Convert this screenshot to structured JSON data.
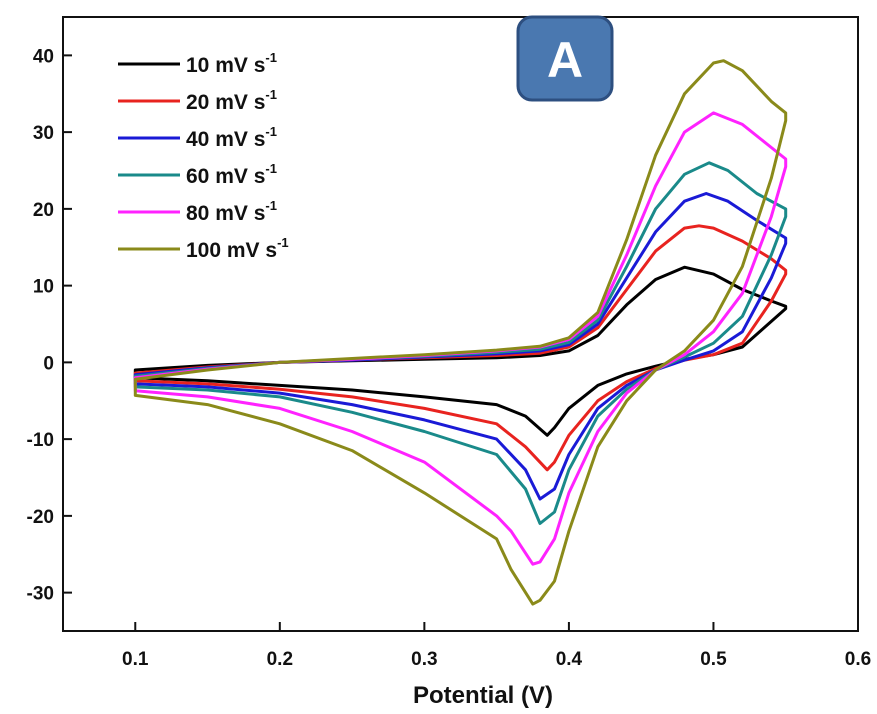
{
  "panel_label": "A",
  "colors": {
    "10": "#000000",
    "20": "#e8231f",
    "40": "#1a1ad6",
    "60": "#1a8a8a",
    "80": "#ff22ff",
    "100": "#8a8a1a",
    "badge_fill": "#4a78b0",
    "badge_stroke": "#2d4f80"
  },
  "chart_data": {
    "type": "line",
    "title": "",
    "xlabel": "Potential (V)",
    "ylabel": "",
    "xlim": [
      0.05,
      0.6
    ],
    "ylim": [
      -35,
      45
    ],
    "xticks": [
      "0.1",
      "0.2",
      "0.3",
      "0.4",
      "0.5",
      "0.6"
    ],
    "yticks": [
      "40",
      "30",
      "20",
      "10",
      "0",
      "-10",
      "-20",
      "-30"
    ],
    "xtick_values": [
      0.1,
      0.2,
      0.3,
      0.4,
      0.5,
      0.6
    ],
    "ytick_values": [
      40,
      30,
      20,
      10,
      0,
      -10,
      -20,
      -30
    ],
    "grid": false,
    "legend_position": "top-left",
    "series": [
      {
        "name": "10 mV s-1",
        "legend_main": "10 mV s",
        "legend_sup": "-1",
        "color_key": "10",
        "x": [
          0.1,
          0.15,
          0.2,
          0.25,
          0.3,
          0.35,
          0.38,
          0.4,
          0.42,
          0.44,
          0.46,
          0.48,
          0.5,
          0.52,
          0.54,
          0.55,
          0.55,
          0.52,
          0.5,
          0.48,
          0.46,
          0.44,
          0.42,
          0.4,
          0.39,
          0.385,
          0.37,
          0.35,
          0.3,
          0.25,
          0.2,
          0.15,
          0.1
        ],
        "y": [
          -1.0,
          -0.4,
          0.0,
          0.2,
          0.4,
          0.6,
          0.9,
          1.5,
          3.5,
          7.5,
          10.8,
          12.4,
          11.5,
          9.5,
          8.0,
          7.3,
          7.0,
          2.0,
          1.0,
          0.4,
          -0.5,
          -1.5,
          -3.0,
          -6.0,
          -8.5,
          -9.5,
          -7.0,
          -5.5,
          -4.5,
          -3.6,
          -3.0,
          -2.4,
          -2.0
        ]
      },
      {
        "name": "20 mV s-1",
        "legend_main": "20 mV s",
        "legend_sup": "-1",
        "color_key": "20",
        "x": [
          0.1,
          0.15,
          0.2,
          0.25,
          0.3,
          0.35,
          0.38,
          0.4,
          0.42,
          0.44,
          0.46,
          0.48,
          0.49,
          0.5,
          0.52,
          0.54,
          0.55,
          0.55,
          0.54,
          0.52,
          0.5,
          0.48,
          0.46,
          0.44,
          0.42,
          0.4,
          0.39,
          0.385,
          0.37,
          0.35,
          0.3,
          0.25,
          0.2,
          0.15,
          0.1
        ],
        "y": [
          -1.4,
          -0.6,
          0.0,
          0.3,
          0.6,
          0.9,
          1.2,
          2.0,
          4.5,
          9.5,
          14.5,
          17.5,
          17.8,
          17.5,
          15.8,
          13.5,
          12.0,
          11.5,
          8.0,
          2.5,
          1.0,
          0.3,
          -0.8,
          -2.5,
          -5.0,
          -9.5,
          -13.0,
          -14.0,
          -11.0,
          -8.0,
          -6.0,
          -4.5,
          -3.5,
          -2.8,
          -2.4
        ]
      },
      {
        "name": "40 mV s-1",
        "legend_main": "40 mV s",
        "legend_sup": "-1",
        "color_key": "40",
        "x": [
          0.1,
          0.15,
          0.2,
          0.25,
          0.3,
          0.35,
          0.38,
          0.4,
          0.42,
          0.44,
          0.46,
          0.48,
          0.495,
          0.51,
          0.53,
          0.55,
          0.55,
          0.54,
          0.52,
          0.5,
          0.48,
          0.46,
          0.44,
          0.42,
          0.4,
          0.39,
          0.38,
          0.37,
          0.35,
          0.3,
          0.25,
          0.2,
          0.15,
          0.1
        ],
        "y": [
          -1.6,
          -0.7,
          0.0,
          0.3,
          0.7,
          1.1,
          1.5,
          2.3,
          5.0,
          11.0,
          17.0,
          21.0,
          22.0,
          21.0,
          18.5,
          16.2,
          15.5,
          11.0,
          4.0,
          1.5,
          0.3,
          -1.0,
          -3.0,
          -6.0,
          -12.0,
          -16.5,
          -17.8,
          -14.0,
          -10.0,
          -7.5,
          -5.5,
          -4.0,
          -3.2,
          -2.8
        ]
      },
      {
        "name": "60 mV s-1",
        "legend_main": "60 mV s",
        "legend_sup": "-1",
        "color_key": "60",
        "x": [
          0.1,
          0.15,
          0.2,
          0.25,
          0.3,
          0.35,
          0.38,
          0.4,
          0.42,
          0.44,
          0.46,
          0.48,
          0.497,
          0.51,
          0.53,
          0.55,
          0.55,
          0.54,
          0.52,
          0.5,
          0.48,
          0.46,
          0.44,
          0.42,
          0.4,
          0.39,
          0.38,
          0.37,
          0.35,
          0.3,
          0.25,
          0.2,
          0.15,
          0.1
        ],
        "y": [
          -1.8,
          -0.8,
          0.0,
          0.4,
          0.8,
          1.3,
          1.7,
          2.6,
          5.5,
          12.5,
          20.0,
          24.5,
          26.0,
          25.0,
          22.0,
          20.0,
          19.0,
          14.0,
          6.0,
          2.5,
          0.7,
          -1.0,
          -3.5,
          -7.0,
          -14.0,
          -19.5,
          -21.0,
          -16.5,
          -12.0,
          -9.0,
          -6.5,
          -4.5,
          -3.6,
          -3.2
        ]
      },
      {
        "name": "80 mV s-1",
        "legend_main": "80 mV s",
        "legend_sup": "-1",
        "color_key": "80",
        "x": [
          0.1,
          0.15,
          0.2,
          0.25,
          0.3,
          0.35,
          0.38,
          0.4,
          0.42,
          0.44,
          0.46,
          0.48,
          0.5,
          0.52,
          0.54,
          0.55,
          0.55,
          0.54,
          0.52,
          0.5,
          0.48,
          0.46,
          0.44,
          0.42,
          0.4,
          0.39,
          0.38,
          0.375,
          0.36,
          0.35,
          0.3,
          0.25,
          0.2,
          0.15,
          0.1
        ],
        "y": [
          -2.0,
          -0.9,
          0.0,
          0.4,
          0.9,
          1.5,
          2.0,
          3.0,
          6.0,
          14.0,
          23.0,
          30.0,
          32.5,
          31.0,
          28.0,
          26.5,
          25.5,
          19.0,
          9.0,
          4.0,
          1.0,
          -1.0,
          -4.0,
          -9.0,
          -17.0,
          -23.0,
          -26.0,
          -26.3,
          -22.0,
          -20.0,
          -13.0,
          -9.0,
          -6.0,
          -4.5,
          -3.7
        ]
      },
      {
        "name": "100 mV s-1",
        "legend_main": "100 mV s",
        "legend_sup": "-1",
        "color_key": "100",
        "x": [
          0.1,
          0.15,
          0.2,
          0.25,
          0.3,
          0.35,
          0.38,
          0.4,
          0.42,
          0.44,
          0.46,
          0.48,
          0.5,
          0.507,
          0.52,
          0.54,
          0.55,
          0.55,
          0.54,
          0.52,
          0.5,
          0.48,
          0.46,
          0.44,
          0.42,
          0.4,
          0.39,
          0.38,
          0.375,
          0.36,
          0.35,
          0.3,
          0.25,
          0.2,
          0.15,
          0.1
        ],
        "y": [
          -2.2,
          -1.0,
          0.0,
          0.5,
          1.0,
          1.6,
          2.1,
          3.2,
          6.5,
          16.0,
          27.0,
          35.0,
          39.0,
          39.3,
          38.0,
          34.0,
          32.5,
          31.5,
          24.0,
          12.5,
          5.5,
          1.5,
          -1.0,
          -5.0,
          -11.0,
          -22.0,
          -28.5,
          -31.0,
          -31.5,
          -27.0,
          -23.0,
          -17.0,
          -11.5,
          -8.0,
          -5.5,
          -4.3
        ]
      }
    ]
  }
}
